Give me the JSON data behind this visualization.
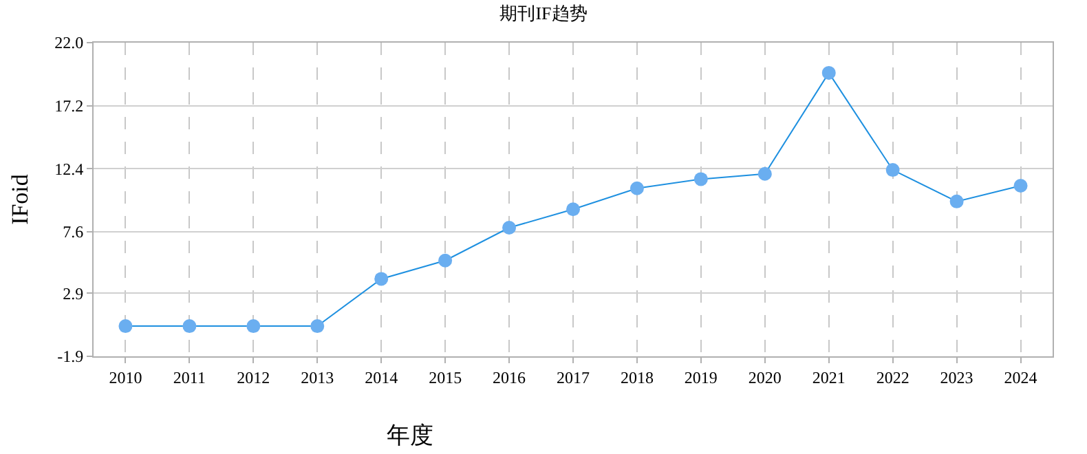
{
  "chart_data": {
    "type": "line",
    "title": "期刊IF趋势",
    "xlabel": "年度",
    "ylabel": "IFoid",
    "categories": [
      "2010",
      "2011",
      "2012",
      "2013",
      "2014",
      "2015",
      "2016",
      "2017",
      "2018",
      "2019",
      "2020",
      "2021",
      "2022",
      "2023",
      "2024"
    ],
    "series": [
      {
        "color": "#1e90e0",
        "values": [
          0.4,
          0.4,
          0.4,
          0.4,
          4.0,
          5.4,
          7.9,
          9.3,
          10.9,
          11.6,
          12.0,
          19.7,
          12.3,
          9.9,
          11.1
        ]
      }
    ],
    "ylim": [
      -1.9,
      22.0
    ],
    "yticks": [
      -1.9,
      2.9,
      7.6,
      12.4,
      17.2,
      {
        "value": 22.0,
        "label": "22.0"
      }
    ],
    "grid": true,
    "marker": "circle",
    "line_style": "solid"
  }
}
